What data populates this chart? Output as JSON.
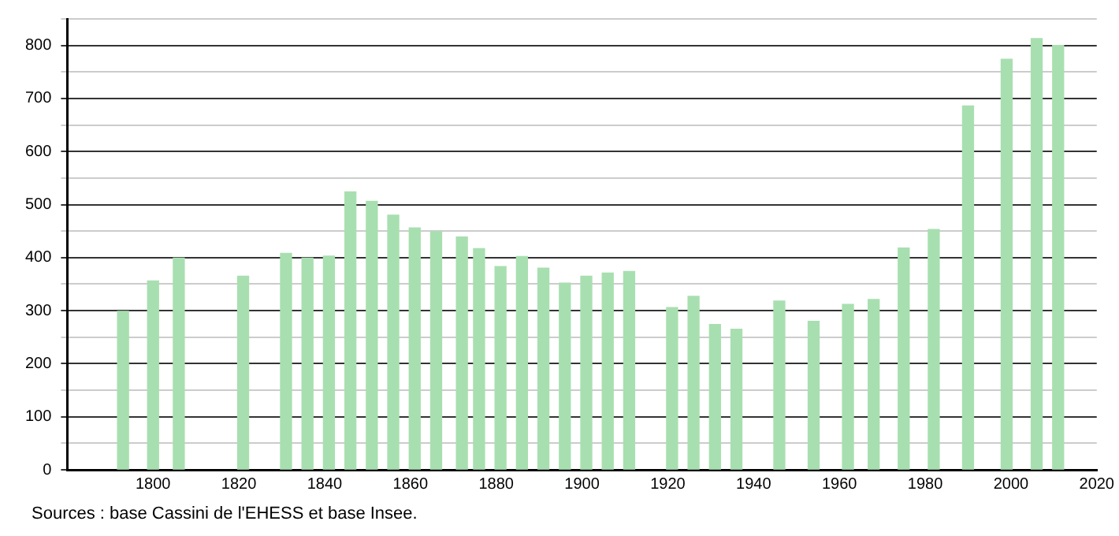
{
  "chart_data": {
    "type": "bar",
    "x": [
      1793,
      1800,
      1806,
      1821,
      1831,
      1836,
      1841,
      1846,
      1851,
      1856,
      1861,
      1866,
      1872,
      1876,
      1881,
      1886,
      1891,
      1896,
      1901,
      1906,
      1911,
      1921,
      1926,
      1931,
      1936,
      1946,
      1954,
      1962,
      1968,
      1975,
      1982,
      1990,
      1999,
      2006,
      2011
    ],
    "values": [
      299,
      356,
      399,
      365,
      408,
      399,
      403,
      524,
      506,
      480,
      456,
      449,
      439,
      417,
      383,
      402,
      380,
      352,
      365,
      371,
      374,
      306,
      327,
      274,
      265,
      318,
      280,
      312,
      321,
      418,
      453,
      686,
      774,
      813,
      800
    ],
    "color": "#a8dfb0",
    "xlim": [
      1780,
      2020
    ],
    "xticks": [
      1800,
      1820,
      1840,
      1860,
      1880,
      1900,
      1920,
      1940,
      1960,
      1980,
      2000,
      2020
    ],
    "ylim": [
      0,
      850
    ],
    "yticks": [
      0,
      {
        "value": 50,
        "label": null
      },
      100,
      {
        "value": 150,
        "label": null
      },
      200,
      {
        "value": 250,
        "label": null
      },
      300,
      {
        "value": 350,
        "label": null
      },
      400,
      {
        "value": 450,
        "label": null
      },
      500,
      {
        "value": 550,
        "label": null
      },
      600,
      {
        "value": 650,
        "label": null
      },
      700,
      {
        "value": 750,
        "label": null
      },
      800,
      {
        "value": 850,
        "label": null
      }
    ],
    "grid": "y",
    "legend": false,
    "annotations": [
      "Sources : base Cassini de l'EHESS et base Insee."
    ]
  }
}
